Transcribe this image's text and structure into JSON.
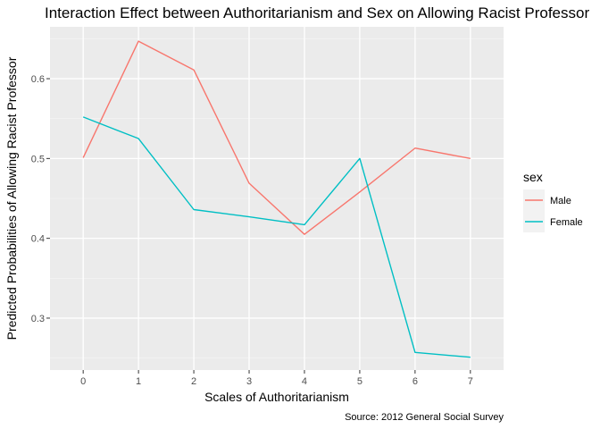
{
  "chart_data": {
    "type": "line",
    "title": "Interaction Effect between Authoritarianism and Sex on Allowing Racist Professor",
    "xlabel": "Scales of Authoritarianism",
    "ylabel": "Predicted Probabilities of Allowing Racist Professor",
    "caption": "Source: 2012 General Social Survey",
    "x": [
      0,
      1,
      2,
      3,
      4,
      5,
      6,
      7
    ],
    "x_ticks": [
      "0",
      "1",
      "2",
      "3",
      "4",
      "5",
      "6",
      "7"
    ],
    "y_ticks": [
      "0.3",
      "0.4",
      "0.5",
      "0.6"
    ],
    "xlim": [
      -0.6,
      7.6
    ],
    "ylim": [
      0.235,
      0.665
    ],
    "grid": true,
    "legend": {
      "title": "sex",
      "position": "right"
    },
    "series": [
      {
        "name": "Male",
        "color": "#F8766D",
        "values": [
          0.501,
          0.647,
          0.611,
          0.469,
          0.405,
          0.458,
          0.513,
          0.5
        ]
      },
      {
        "name": "Female",
        "color": "#00BFC4",
        "values": [
          0.552,
          0.525,
          0.436,
          0.427,
          0.417,
          0.5,
          0.257,
          0.251
        ]
      }
    ]
  }
}
